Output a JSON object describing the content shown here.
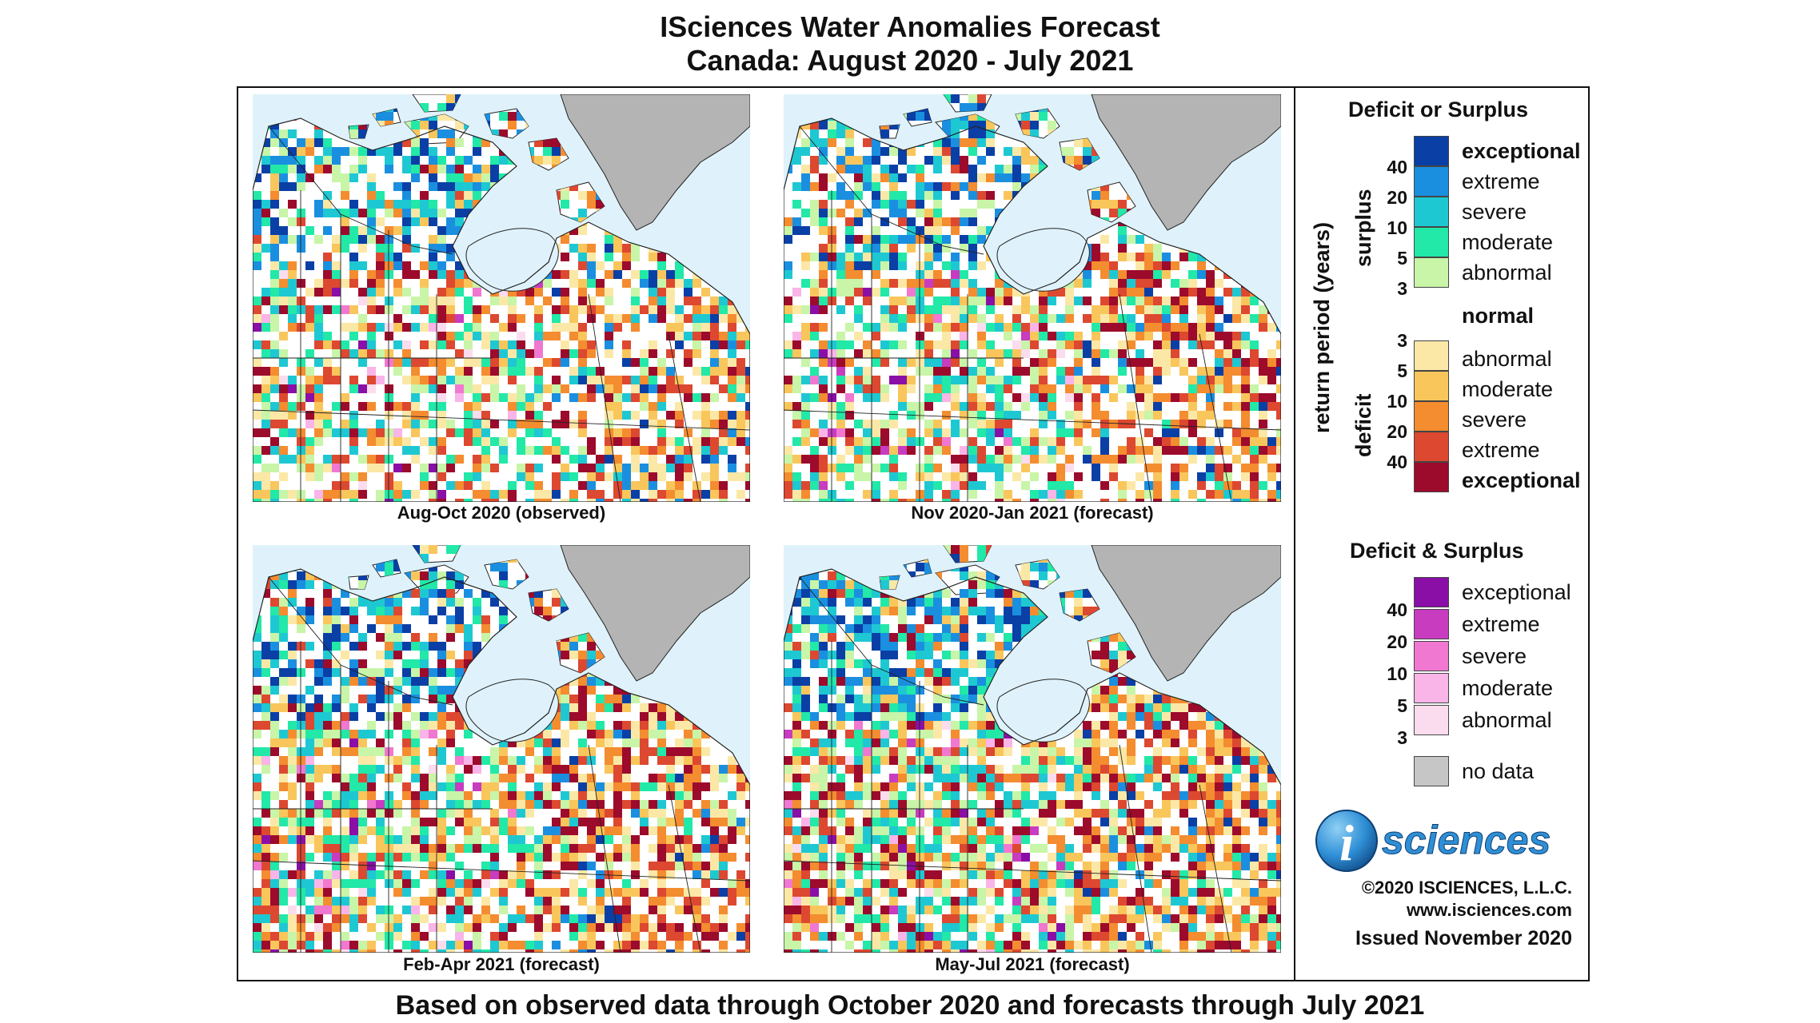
{
  "header": {
    "title": "ISciences Water Anomalies Forecast",
    "subtitle": "Canada: August 2020 - July 2021"
  },
  "footer": {
    "note": "Based on observed data through October 2020 and forecasts through July 2021"
  },
  "panels": [
    {
      "caption": "Aug-Oct 2020 (observed)",
      "seed": 11,
      "intensity": 1.0
    },
    {
      "caption": "Nov 2020-Jan 2021 (forecast)",
      "seed": 23,
      "intensity": 0.85
    },
    {
      "caption": "Feb-Apr 2021 (forecast)",
      "seed": 37,
      "intensity": 0.75
    },
    {
      "caption": "May-Jul 2021 (forecast)",
      "seed": 51,
      "intensity": 0.6
    }
  ],
  "legend": {
    "deficit_or_surplus": {
      "title": "Deficit or Surplus",
      "axis_label": "return period (years)",
      "surplus_label": "surplus",
      "deficit_label": "deficit",
      "surplus_items": [
        {
          "label": "exceptional",
          "color": "#0a3fa6",
          "bold": true
        },
        {
          "label": "extreme",
          "color": "#1a8fe0",
          "bold": false
        },
        {
          "label": "severe",
          "color": "#1ec8d2",
          "bold": false
        },
        {
          "label": "moderate",
          "color": "#22e8a8",
          "bold": false
        },
        {
          "label": "abnormal",
          "color": "#c8f5a8",
          "bold": false
        }
      ],
      "normal_label": "normal",
      "deficit_items": [
        {
          "label": "abnormal",
          "color": "#fbe8a6",
          "bold": false
        },
        {
          "label": "moderate",
          "color": "#f9c65c",
          "bold": false
        },
        {
          "label": "severe",
          "color": "#f48c30",
          "bold": false
        },
        {
          "label": "extreme",
          "color": "#dd4830",
          "bold": false
        },
        {
          "label": "exceptional",
          "color": "#9c0a2c",
          "bold": true
        }
      ],
      "surplus_numbers": [
        "40",
        "20",
        "10",
        "5",
        "3"
      ],
      "deficit_numbers": [
        "3",
        "5",
        "10",
        "20",
        "40"
      ]
    },
    "deficit_and_surplus": {
      "title": "Deficit & Surplus",
      "items": [
        {
          "label": "exceptional",
          "color": "#8a0fa6"
        },
        {
          "label": "extreme",
          "color": "#c83cc0"
        },
        {
          "label": "severe",
          "color": "#f078d0"
        },
        {
          "label": "moderate",
          "color": "#f9b4e8"
        },
        {
          "label": "abnormal",
          "color": "#fbdcee"
        }
      ],
      "numbers": [
        "40",
        "20",
        "10",
        "5",
        "3"
      ]
    },
    "no_data": {
      "label": "no data",
      "color": "#c6c6c6"
    }
  },
  "branding": {
    "logo_letter": "i",
    "logo_text": "sciences",
    "copyright": "©2020 ISCIENCES, L.L.C.",
    "website": "www.isciences.com",
    "issued": "Issued November 2020"
  },
  "colors": {
    "ocean": "#dff2fb",
    "land": "#ffffff",
    "greenland": "#b4b4b4",
    "border": "#222222"
  }
}
